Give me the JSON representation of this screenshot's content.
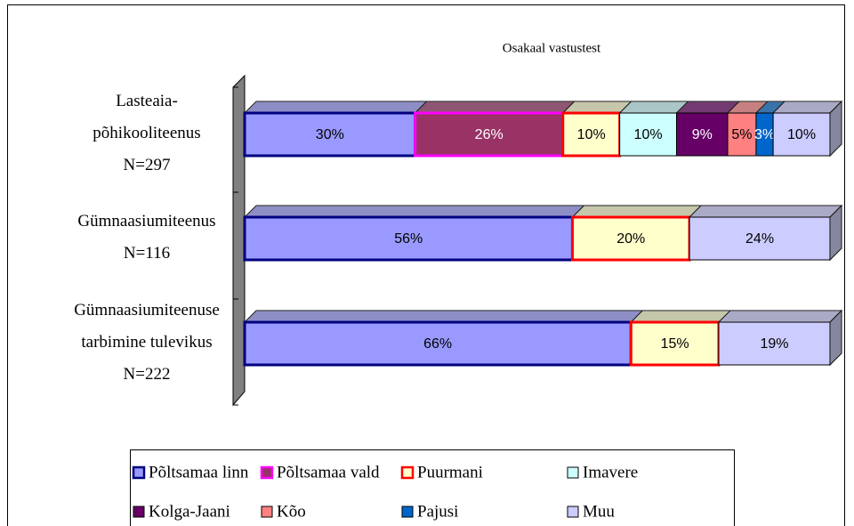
{
  "chart_data": {
    "type": "bar",
    "orientation": "horizontal",
    "stacked": "percent",
    "three_d": true,
    "title": "Osakaal vastustest",
    "categories": [
      "Lasteaia-\npõhikooliteenus\nN=297",
      "Gümnaasiumiteenus\nN=116",
      "Gümnaasiumiteenuse\ntarbimine tulevikus\nN=222"
    ],
    "series": [
      {
        "name": "Põltsamaa linn",
        "color": "#9999ff",
        "edge": "#000080",
        "values": [
          30,
          56,
          66
        ],
        "value_labels": [
          "30%",
          "56%",
          "66%"
        ]
      },
      {
        "name": "Põltsamaa vald",
        "color": "#993366",
        "edge": "#ff00ff",
        "values": [
          26,
          null,
          null
        ],
        "value_labels": [
          "26%",
          null,
          null
        ]
      },
      {
        "name": "Puurmani",
        "color": "#ffffcc",
        "edge": "#ff0000",
        "values": [
          10,
          20,
          15
        ],
        "value_labels": [
          "10%",
          "20%",
          "15%"
        ]
      },
      {
        "name": "Imavere",
        "color": "#ccffff",
        "edge": "#000000",
        "values": [
          10,
          null,
          null
        ],
        "value_labels": [
          "10%",
          null,
          null
        ]
      },
      {
        "name": "Kolga-Jaani",
        "color": "#660066",
        "edge": "#000000",
        "values": [
          9,
          null,
          null
        ],
        "value_labels": [
          "9%",
          null,
          null
        ]
      },
      {
        "name": "Kõo",
        "color": "#ff8080",
        "edge": "#000000",
        "values": [
          5,
          null,
          null
        ],
        "value_labels": [
          "5%",
          null,
          null
        ]
      },
      {
        "name": "Pajusi",
        "color": "#0066cc",
        "edge": "#000000",
        "values": [
          3,
          null,
          null
        ],
        "value_labels": [
          "3%",
          null,
          null
        ]
      },
      {
        "name": "Muu",
        "color": "#ccccff",
        "edge": "#000000",
        "values": [
          10,
          24,
          19
        ],
        "value_labels": [
          "10%",
          "24%",
          "19%"
        ]
      }
    ],
    "legend": "bottom"
  }
}
